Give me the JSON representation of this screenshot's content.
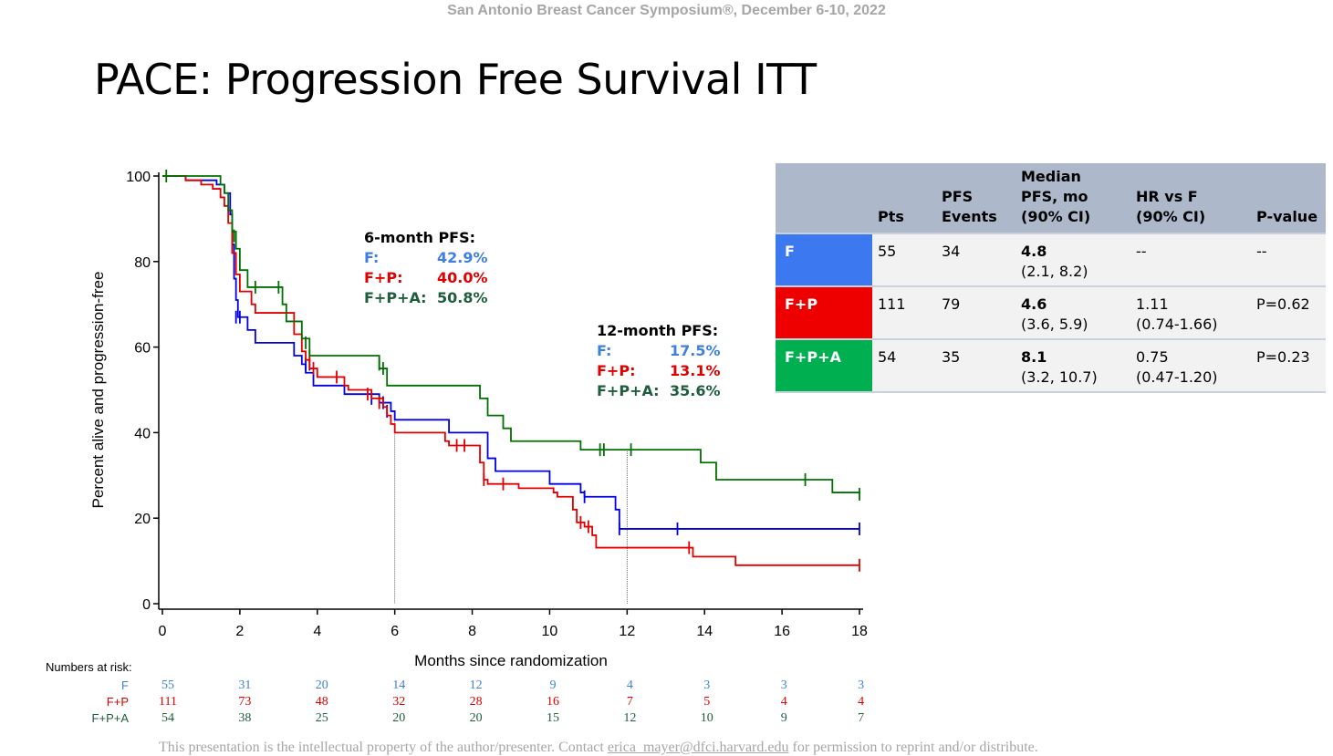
{
  "header": "San Antonio Breast Cancer Symposium®, December 6-10, 2022",
  "title": "PACE: Progression Free Survival ITT",
  "pfs6": {
    "heading": "6-month PFS:",
    "rows": [
      {
        "label": "F:",
        "value": "42.9%",
        "color": "#3e7fe0"
      },
      {
        "label": "F+P:",
        "value": "40.0%",
        "color": "#e00000"
      },
      {
        "label": "F+P+A:",
        "value": "50.8%",
        "color": "#1e5e3e"
      }
    ]
  },
  "pfs12": {
    "heading": "12-month PFS:",
    "rows": [
      {
        "label": "F:",
        "value": "17.5%",
        "color": "#3e7fe0"
      },
      {
        "label": "F+P:",
        "value": "13.1%",
        "color": "#e00000"
      },
      {
        "label": "F+P+A:",
        "value": "35.6%",
        "color": "#1e5e3e"
      }
    ]
  },
  "table": {
    "headers": [
      "",
      "Pts",
      "PFS\nEvents",
      "Median\nPFS, mo\n(90% CI)",
      "HR vs F\n(90% CI)",
      "P-value"
    ],
    "rows": [
      {
        "arm": "F",
        "color": "#3c78f0",
        "pts": "55",
        "events": "34",
        "median": "4.8",
        "median_ci": "(2.1, 8.2)",
        "hr": "--",
        "hr_ci": "",
        "p": "--"
      },
      {
        "arm": "F+P",
        "color": "#ee0000",
        "pts": "111",
        "events": "79",
        "median": "4.6",
        "median_ci": "(3.6, 5.9)",
        "hr": "1.11",
        "hr_ci": "(0.74-1.66)",
        "p": "P=0.62"
      },
      {
        "arm": "F+P+A",
        "color": "#00b050",
        "pts": "54",
        "events": "35",
        "median": "8.1",
        "median_ci": "(3.2, 10.7)",
        "hr": "0.75",
        "hr_ci": "(0.47-1.20)",
        "p": "P=0.23"
      }
    ]
  },
  "risk": {
    "title": "Numbers at risk:",
    "times": [
      0,
      2,
      4,
      6,
      8,
      10,
      12,
      14,
      16,
      18
    ],
    "rows": [
      {
        "label": "F",
        "color": "#3e7fe0",
        "values": [
          "55",
          "31",
          "20",
          "14",
          "12",
          "9",
          "4",
          "3",
          "3",
          "3"
        ]
      },
      {
        "label": "F+P",
        "color": "#e00000",
        "values": [
          "111",
          "73",
          "48",
          "32",
          "28",
          "16",
          "7",
          "5",
          "4",
          "4"
        ]
      },
      {
        "label": "F+P+A",
        "color": "#1e5e3e",
        "values": [
          "54",
          "38",
          "25",
          "20",
          "20",
          "15",
          "12",
          "10",
          "9",
          "7"
        ]
      }
    ]
  },
  "footer": {
    "text_before": "This presentation is the intellectual property of the author/presenter. Contact",
    "email": "erica_mayer@dfci.harvard.edu",
    "text_after": "for permission to reprint and/or distribute."
  },
  "chart_data": {
    "type": "line",
    "xlabel": "Months since randomization",
    "ylabel": "Percent alive and progression-free",
    "xlim": [
      0,
      18
    ],
    "ylim": [
      0,
      100
    ],
    "xticks": [
      0,
      2,
      4,
      6,
      8,
      10,
      12,
      14,
      16,
      18
    ],
    "yticks": [
      0,
      20,
      40,
      60,
      80,
      100
    ],
    "reference_lines_x": [
      6,
      12
    ],
    "series": [
      {
        "name": "F",
        "color": "#0000e0",
        "steps": [
          [
            0,
            100
          ],
          [
            0.3,
            100
          ],
          [
            0.6,
            99
          ],
          [
            1.4,
            98
          ],
          [
            1.6,
            96
          ],
          [
            1.75,
            91
          ],
          [
            1.8,
            84
          ],
          [
            1.85,
            76
          ],
          [
            1.9,
            71
          ],
          [
            1.95,
            67
          ],
          [
            2.2,
            64
          ],
          [
            2.4,
            61
          ],
          [
            3.3,
            61
          ],
          [
            3.4,
            58
          ],
          [
            3.6,
            56
          ],
          [
            3.7,
            54
          ],
          [
            3.9,
            51
          ],
          [
            4.6,
            51
          ],
          [
            4.7,
            49
          ],
          [
            5.4,
            49
          ],
          [
            5.6,
            47
          ],
          [
            5.9,
            45
          ],
          [
            6.0,
            43
          ],
          [
            7.3,
            43
          ],
          [
            7.4,
            40
          ],
          [
            8.2,
            40
          ],
          [
            8.4,
            34
          ],
          [
            8.6,
            31
          ],
          [
            9.9,
            31
          ],
          [
            10.0,
            28
          ],
          [
            10.8,
            26
          ],
          [
            10.9,
            25
          ],
          [
            11.6,
            25
          ],
          [
            11.7,
            22
          ],
          [
            11.8,
            17.5
          ],
          [
            18,
            17.5
          ]
        ],
        "censor": [
          [
            1.9,
            67
          ],
          [
            2.0,
            67
          ],
          [
            3.7,
            56
          ],
          [
            3.8,
            56
          ],
          [
            5.4,
            48
          ],
          [
            5.7,
            47
          ],
          [
            5.8,
            45
          ],
          [
            10.9,
            25
          ],
          [
            11.8,
            17.5
          ],
          [
            13.3,
            17.5
          ],
          [
            18,
            17.5
          ]
        ]
      },
      {
        "name": "F+P",
        "color": "#e00000",
        "steps": [
          [
            0,
            100
          ],
          [
            0.6,
            99
          ],
          [
            1.0,
            98
          ],
          [
            1.3,
            97
          ],
          [
            1.5,
            95
          ],
          [
            1.6,
            93
          ],
          [
            1.7,
            89
          ],
          [
            1.8,
            82
          ],
          [
            1.9,
            77
          ],
          [
            2.0,
            73
          ],
          [
            2.3,
            70
          ],
          [
            2.4,
            68
          ],
          [
            3.3,
            68
          ],
          [
            3.4,
            63
          ],
          [
            3.6,
            59
          ],
          [
            3.7,
            57
          ],
          [
            3.8,
            55
          ],
          [
            4.0,
            53
          ],
          [
            4.7,
            51
          ],
          [
            4.8,
            50
          ],
          [
            5.4,
            48
          ],
          [
            5.7,
            46
          ],
          [
            5.8,
            44
          ],
          [
            5.9,
            42
          ],
          [
            6.0,
            40
          ],
          [
            7.3,
            38
          ],
          [
            7.4,
            37
          ],
          [
            8.1,
            37
          ],
          [
            8.2,
            33
          ],
          [
            8.3,
            29
          ],
          [
            8.4,
            28
          ],
          [
            9.0,
            28
          ],
          [
            9.2,
            27
          ],
          [
            10.1,
            26
          ],
          [
            10.2,
            25
          ],
          [
            10.6,
            22
          ],
          [
            10.7,
            19
          ],
          [
            10.9,
            18
          ],
          [
            11.1,
            16
          ],
          [
            11.2,
            13.1
          ],
          [
            13.6,
            13.1
          ],
          [
            13.7,
            11
          ],
          [
            14.7,
            11
          ],
          [
            14.8,
            9
          ],
          [
            18,
            9
          ]
        ],
        "censor": [
          [
            3.8,
            58
          ],
          [
            3.9,
            55
          ],
          [
            4.5,
            53
          ],
          [
            5.3,
            49
          ],
          [
            5.6,
            47
          ],
          [
            7.6,
            37
          ],
          [
            7.8,
            37
          ],
          [
            8.3,
            29
          ],
          [
            8.8,
            28
          ],
          [
            10.8,
            19
          ],
          [
            11.0,
            18
          ],
          [
            13.6,
            13.1
          ],
          [
            18,
            9
          ]
        ]
      },
      {
        "name": "F+P+A",
        "color": "#007000",
        "steps": [
          [
            0,
            100
          ],
          [
            1.4,
            100
          ],
          [
            1.5,
            98
          ],
          [
            1.6,
            96
          ],
          [
            1.7,
            92
          ],
          [
            1.8,
            87
          ],
          [
            1.9,
            83
          ],
          [
            2.0,
            78
          ],
          [
            2.2,
            74
          ],
          [
            3.0,
            74
          ],
          [
            3.1,
            70
          ],
          [
            3.2,
            66
          ],
          [
            3.6,
            62
          ],
          [
            3.8,
            58
          ],
          [
            5.5,
            58
          ],
          [
            5.6,
            55
          ],
          [
            5.8,
            51
          ],
          [
            8.1,
            51
          ],
          [
            8.2,
            48
          ],
          [
            8.4,
            44
          ],
          [
            8.8,
            41
          ],
          [
            9.0,
            38
          ],
          [
            10.7,
            38
          ],
          [
            10.8,
            36
          ],
          [
            13.8,
            36
          ],
          [
            13.9,
            33
          ],
          [
            14.3,
            29
          ],
          [
            17.2,
            29
          ],
          [
            17.3,
            26
          ],
          [
            18,
            25.6
          ]
        ],
        "censor": [
          [
            0.1,
            100
          ],
          [
            1.85,
            86
          ],
          [
            2.4,
            74
          ],
          [
            3.0,
            74
          ],
          [
            3.7,
            61
          ],
          [
            5.6,
            56
          ],
          [
            5.7,
            55
          ],
          [
            11.3,
            36
          ],
          [
            11.4,
            36
          ],
          [
            12.1,
            36
          ],
          [
            16.6,
            29
          ],
          [
            18,
            25.6
          ]
        ]
      }
    ]
  }
}
